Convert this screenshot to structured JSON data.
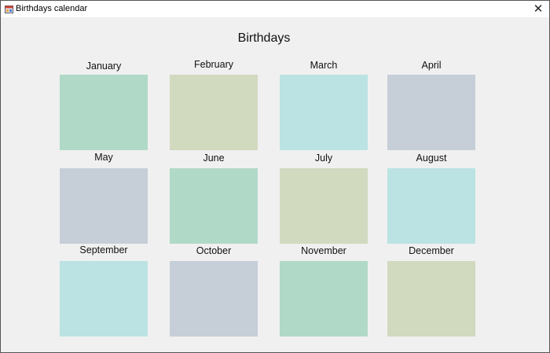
{
  "window": {
    "title": "Birthdays calendar"
  },
  "heading": "Birthdays",
  "months": [
    {
      "label": "January"
    },
    {
      "label": "February"
    },
    {
      "label": "March"
    },
    {
      "label": "April"
    },
    {
      "label": "May"
    },
    {
      "label": "June"
    },
    {
      "label": "July"
    },
    {
      "label": "August"
    },
    {
      "label": "September"
    },
    {
      "label": "October"
    },
    {
      "label": "November"
    },
    {
      "label": "December"
    }
  ]
}
